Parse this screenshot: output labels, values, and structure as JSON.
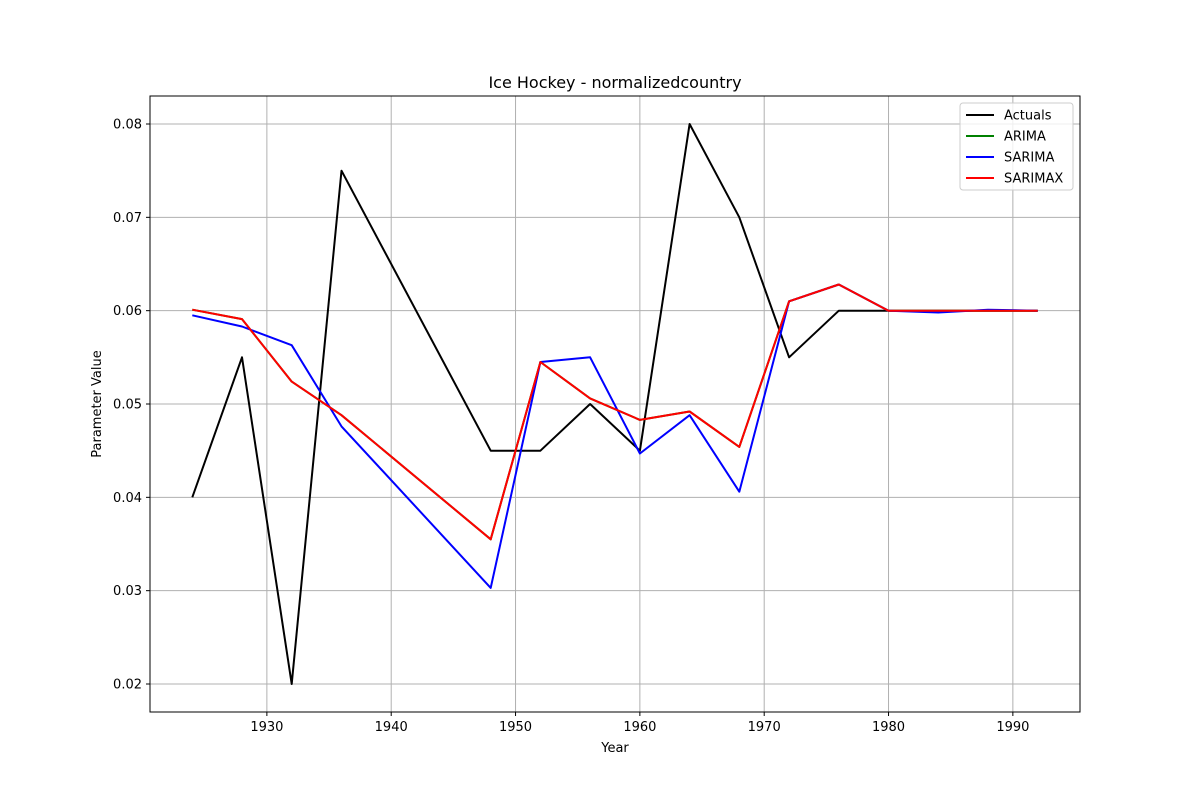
{
  "chart_data": {
    "type": "line",
    "title": "Ice Hockey - normalizedcountry",
    "xlabel": "Year",
    "ylabel": "Parameter Value",
    "xlim": [
      1920.6,
      1995.4
    ],
    "ylim": [
      0.017,
      0.083
    ],
    "xticks": [
      1930,
      1940,
      1950,
      1960,
      1970,
      1980,
      1990
    ],
    "yticks": [
      0.02,
      0.03,
      0.04,
      0.05,
      0.06,
      0.07,
      0.08
    ],
    "grid": true,
    "legend_position": "top-right",
    "series": [
      {
        "name": "Actuals",
        "color": "#000000",
        "x": [
          1924,
          1928,
          1932,
          1936,
          1948,
          1952,
          1956,
          1960,
          1964,
          1968,
          1972,
          1976,
          1980,
          1984,
          1988,
          1992
        ],
        "y": [
          0.04,
          0.055,
          0.02,
          0.075,
          0.045,
          0.045,
          0.05,
          0.045,
          0.08,
          0.07,
          0.055,
          0.06,
          0.06,
          0.06,
          0.06,
          0.06
        ]
      },
      {
        "name": "ARIMA",
        "color": "#008000",
        "x": [
          1924,
          1928,
          1932,
          1936,
          1948,
          1952,
          1956,
          1960,
          1964,
          1968,
          1972,
          1976,
          1980,
          1984,
          1988,
          1992
        ],
        "y": [
          0.0601,
          0.0591,
          0.0524,
          0.0488,
          0.0355,
          0.0545,
          0.0506,
          0.0483,
          0.0492,
          0.0454,
          0.061,
          0.0628,
          0.06,
          0.06,
          0.06,
          0.06
        ]
      },
      {
        "name": "SARIMA",
        "color": "#0000ff",
        "x": [
          1924,
          1928,
          1932,
          1936,
          1948,
          1952,
          1956,
          1960,
          1964,
          1968,
          1972,
          1976,
          1980,
          1984,
          1988,
          1992
        ],
        "y": [
          0.0595,
          0.0583,
          0.0563,
          0.0476,
          0.0303,
          0.0545,
          0.055,
          0.0447,
          0.0488,
          0.0406,
          0.061,
          0.0628,
          0.06,
          0.0598,
          0.0601,
          0.06
        ]
      },
      {
        "name": "SARIMAX",
        "color": "#ff0000",
        "x": [
          1924,
          1928,
          1932,
          1936,
          1948,
          1952,
          1956,
          1960,
          1964,
          1968,
          1972,
          1976,
          1980,
          1984,
          1988,
          1992
        ],
        "y": [
          0.0601,
          0.0591,
          0.0524,
          0.0488,
          0.0355,
          0.0545,
          0.0506,
          0.0483,
          0.0492,
          0.0454,
          0.061,
          0.0628,
          0.06,
          0.06,
          0.06,
          0.06
        ]
      }
    ]
  }
}
